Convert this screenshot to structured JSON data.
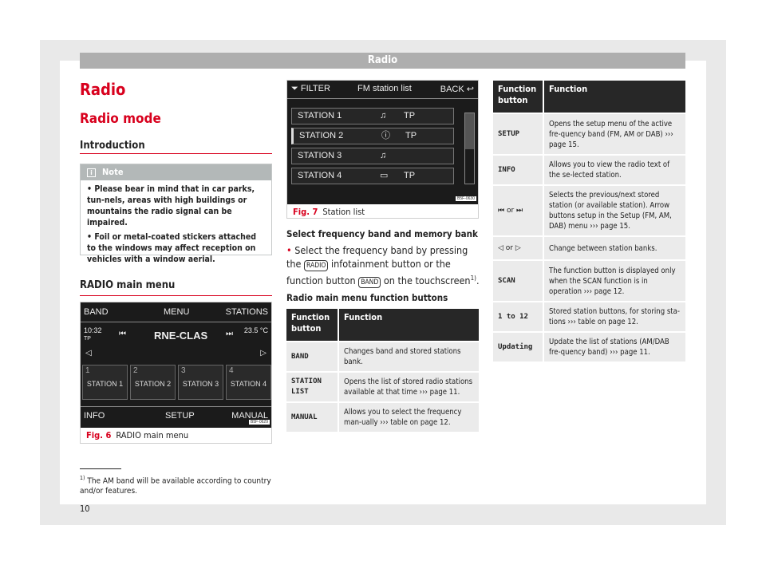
{
  "header": "Radio",
  "title": "Radio",
  "subtitle": "Radio mode",
  "section": "Introduction",
  "note": {
    "label": "Note",
    "items": [
      "• Please bear in mind that in car parks, tun-nels, areas with high buildings or mountains the radio signal can be impaired.",
      "• Foil or metal-coated stickers attached to the windows may affect reception on vehicles with a window aerial."
    ]
  },
  "main_menu_heading": "RADIO main menu",
  "fig6": {
    "num": "Fig. 6",
    "caption": "RADIO main menu",
    "code": "B5F-0629",
    "band": "BAND",
    "menu": "MENU",
    "stations": "STATIONS",
    "time": "10:32",
    "tp": "TP",
    "station_name": "RNE-CLAS",
    "temp": "23.5 °C",
    "presets": [
      {
        "n": "1",
        "l": "STATION 1"
      },
      {
        "n": "2",
        "l": "STATION 2"
      },
      {
        "n": "3",
        "l": "STATION 3"
      },
      {
        "n": "4",
        "l": "STATION 4"
      }
    ],
    "info": "INFO",
    "setup": "SETUP",
    "manual": "MANUAL"
  },
  "fig7": {
    "num": "Fig. 7",
    "caption": "Station list",
    "code": "B5F-0630",
    "filter": "FILTER",
    "title": "FM station list",
    "back": "BACK",
    "rows": [
      {
        "name": "STATION 1",
        "icon": "music-note",
        "tp": "TP"
      },
      {
        "name": "STATION 2",
        "icon": "info-circle",
        "tp": "TP"
      },
      {
        "name": "STATION 3",
        "icon": "music-note",
        "tp": ""
      },
      {
        "name": "STATION 4",
        "icon": "text-box",
        "tp": "TP"
      }
    ]
  },
  "select": {
    "heading": "Select frequency band and memory bank",
    "text1": "Select the frequency band by pressing the",
    "radio_btn": "RADIO",
    "text2": "infotainment button or the function button",
    "band_btn": "BAND",
    "text3": "on the touchscreen",
    "sup": "1)",
    "text4": "."
  },
  "table1": {
    "heading": "Radio main menu function buttons",
    "cols": [
      "Function button",
      "Function"
    ],
    "rows": [
      [
        "BAND",
        "Changes band and stored stations bank."
      ],
      [
        "STATION LIST",
        "Opens the list of stored radio stations available at that time ››› page 11."
      ],
      [
        "MANUAL",
        "Allows you to select the frequency man-ually ››› table on page 12."
      ]
    ]
  },
  "table2": {
    "cols": [
      "Function button",
      "Function"
    ],
    "rows": [
      [
        "SETUP",
        "Opens the setup menu of the active fre-quency band (FM, AM or DAB) ››› page 15."
      ],
      [
        "⏮ or ⏭",
        "Selects the previous/next stored station (or available station). Arrow buttons setup in the Setup (FM, AM, DAB) menu ››› page 15."
      ],
      [
        "◁ or ▷",
        "Change between station banks."
      ],
      [
        "SCAN",
        "The function button is displayed only when the SCAN function is in operation ››› page 12."
      ],
      [
        "1 to 12",
        "Stored station buttons, for storing sta-tions ››› table on page 12."
      ],
      [
        "Updating",
        "Update the list of stations (AM/DAB fre-quency band) ››› page 11."
      ]
    ],
    "info_row": [
      "INFO",
      "Allows you to view the radio text of the se-lected station."
    ]
  },
  "footnote": {
    "mark": "1)",
    "text": "The AM band will be available according to country and/or features."
  },
  "page_number": "10",
  "colors": {
    "accent": "#d8001d",
    "header_bar": "#aeaeae",
    "table_header": "#272727"
  }
}
